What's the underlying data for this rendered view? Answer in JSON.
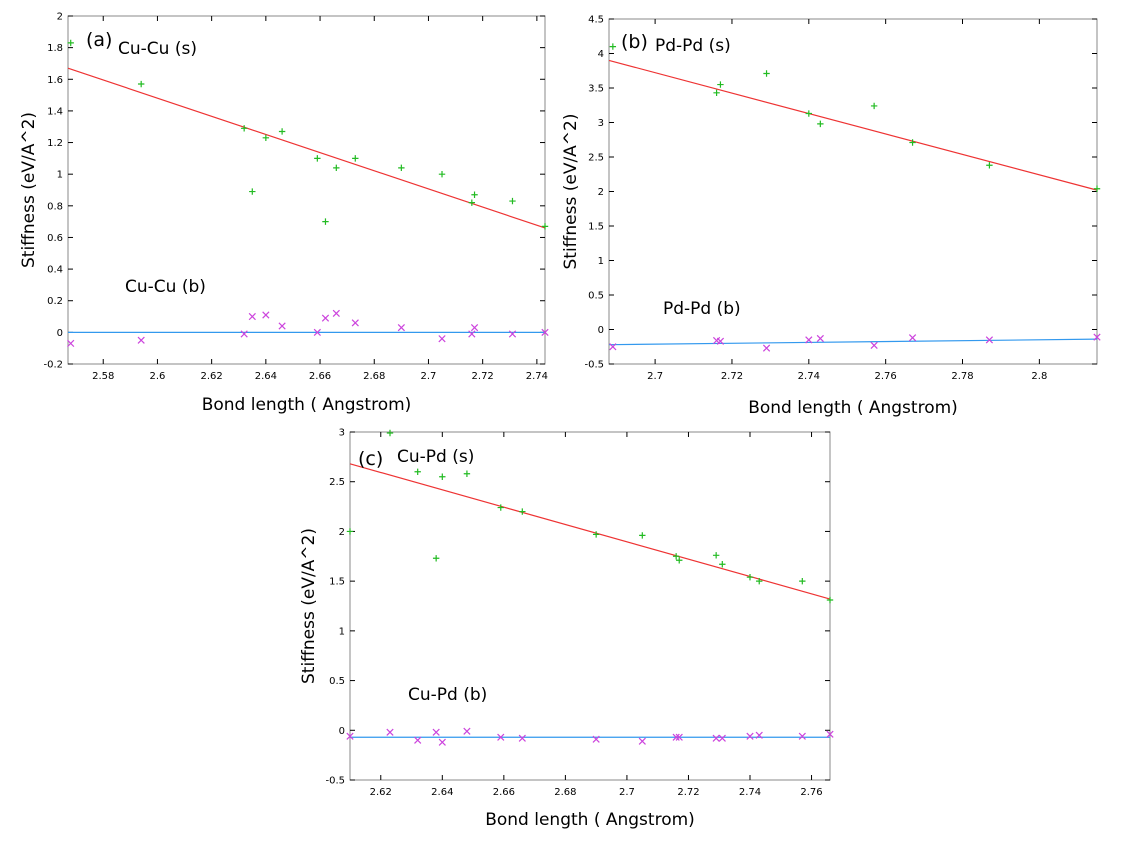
{
  "colors": {
    "stretch_points": "#22bb22",
    "bend_points": "#cc44dd",
    "stretch_fit": "#ee3333",
    "bend_fit": "#3399ee",
    "frame": "#888888"
  },
  "chart_data": [
    {
      "type": "scatter",
      "panel_label": "(a)",
      "xlabel": "Bond length ( Angstrom)",
      "ylabel": "Stiffness (eV/A^2)",
      "xlim": [
        2.567,
        2.743
      ],
      "ylim": [
        -0.2,
        2.0
      ],
      "xticks": [
        "2.58",
        "2.6",
        "2.62",
        "2.64",
        "2.66",
        "2.68",
        "2.7",
        "2.72",
        "2.74"
      ],
      "yticks": [
        "-0.2",
        "0",
        "0.2",
        "0.4",
        "0.6",
        "0.8",
        "1",
        "1.2",
        "1.4",
        "1.6",
        "1.8",
        "2"
      ],
      "series": [
        {
          "name": "Cu-Cu (s)",
          "marker": "plus",
          "color_key": "stretch_points",
          "x": [
            2.568,
            2.594,
            2.632,
            2.635,
            2.64,
            2.646,
            2.659,
            2.662,
            2.666,
            2.673,
            2.69,
            2.705,
            2.716,
            2.717,
            2.731,
            2.743
          ],
          "y": [
            1.83,
            1.57,
            1.29,
            0.89,
            1.23,
            1.27,
            1.1,
            0.7,
            1.04,
            1.1,
            1.04,
            1.0,
            0.82,
            0.87,
            0.83,
            0.67
          ]
        },
        {
          "name": "Cu-Cu (b)",
          "marker": "cross",
          "color_key": "bend_points",
          "x": [
            2.568,
            2.594,
            2.632,
            2.635,
            2.64,
            2.646,
            2.659,
            2.662,
            2.666,
            2.673,
            2.69,
            2.705,
            2.716,
            2.717,
            2.731,
            2.743
          ],
          "y": [
            -0.07,
            -0.05,
            -0.01,
            0.1,
            0.11,
            0.04,
            0.0,
            0.09,
            0.12,
            0.06,
            0.03,
            -0.04,
            -0.01,
            0.03,
            -0.01,
            0.0
          ]
        }
      ],
      "fits": [
        {
          "color_key": "stretch_fit",
          "x": [
            2.567,
            2.743
          ],
          "y": [
            1.67,
            0.66
          ]
        },
        {
          "color_key": "bend_fit",
          "x": [
            2.567,
            2.743
          ],
          "y": [
            0.0,
            0.0
          ]
        }
      ]
    },
    {
      "type": "scatter",
      "panel_label": "(b)",
      "xlabel": "Bond length ( Angstrom)",
      "ylabel": "Stiffness (eV/A^2)",
      "xlim": [
        2.688,
        2.815
      ],
      "ylim": [
        -0.5,
        4.5
      ],
      "xticks": [
        "2.7",
        "2.72",
        "2.74",
        "2.76",
        "2.78",
        "2.8"
      ],
      "yticks": [
        "-0.5",
        "0",
        "0.5",
        "1",
        "1.5",
        "2",
        "2.5",
        "3",
        "3.5",
        "4",
        "4.5"
      ],
      "series": [
        {
          "name": "Pd-Pd (s)",
          "marker": "plus",
          "color_key": "stretch_points",
          "x": [
            2.689,
            2.716,
            2.717,
            2.729,
            2.74,
            2.743,
            2.757,
            2.767,
            2.787,
            2.815
          ],
          "y": [
            4.1,
            3.43,
            3.55,
            3.71,
            3.13,
            2.98,
            3.24,
            2.71,
            2.38,
            2.04
          ]
        },
        {
          "name": "Pd-Pd (b)",
          "marker": "cross",
          "color_key": "bend_points",
          "x": [
            2.689,
            2.716,
            2.717,
            2.729,
            2.74,
            2.743,
            2.757,
            2.767,
            2.787,
            2.815
          ],
          "y": [
            -0.25,
            -0.16,
            -0.17,
            -0.27,
            -0.15,
            -0.13,
            -0.23,
            -0.12,
            -0.15,
            -0.11
          ]
        }
      ],
      "fits": [
        {
          "color_key": "stretch_fit",
          "x": [
            2.688,
            2.815
          ],
          "y": [
            3.9,
            2.02
          ]
        },
        {
          "color_key": "bend_fit",
          "x": [
            2.688,
            2.815
          ],
          "y": [
            -0.22,
            -0.14
          ]
        }
      ]
    },
    {
      "type": "scatter",
      "panel_label": "(c)",
      "xlabel": "Bond length ( Angstrom)",
      "ylabel": "Stiffness (eV/A^2)",
      "xlim": [
        2.61,
        2.766
      ],
      "ylim": [
        -0.5,
        3.0
      ],
      "xticks": [
        "2.62",
        "2.64",
        "2.66",
        "2.68",
        "2.7",
        "2.72",
        "2.74",
        "2.76"
      ],
      "yticks": [
        "-0.5",
        "0",
        "0.5",
        "1",
        "1.5",
        "2",
        "2.5",
        "3"
      ],
      "series": [
        {
          "name": "Cu-Pd (s)",
          "marker": "plus",
          "color_key": "stretch_points",
          "x": [
            2.61,
            2.623,
            2.632,
            2.638,
            2.64,
            2.648,
            2.659,
            2.666,
            2.69,
            2.705,
            2.716,
            2.717,
            2.729,
            2.731,
            2.74,
            2.743,
            2.757,
            2.766
          ],
          "y": [
            2.0,
            2.99,
            2.6,
            1.73,
            2.55,
            2.58,
            2.24,
            2.2,
            1.97,
            1.96,
            1.75,
            1.71,
            1.76,
            1.67,
            1.54,
            1.5,
            1.5,
            1.31
          ]
        },
        {
          "name": "Cu-Pd (b)",
          "marker": "cross",
          "color_key": "bend_points",
          "x": [
            2.61,
            2.623,
            2.632,
            2.638,
            2.64,
            2.648,
            2.659,
            2.666,
            2.69,
            2.705,
            2.716,
            2.717,
            2.729,
            2.731,
            2.74,
            2.743,
            2.757,
            2.766
          ],
          "y": [
            -0.06,
            -0.02,
            -0.1,
            -0.02,
            -0.12,
            -0.01,
            -0.07,
            -0.08,
            -0.09,
            -0.11,
            -0.07,
            -0.07,
            -0.08,
            -0.08,
            -0.06,
            -0.05,
            -0.06,
            -0.04
          ]
        }
      ],
      "fits": [
        {
          "color_key": "stretch_fit",
          "x": [
            2.61,
            2.766
          ],
          "y": [
            2.68,
            1.32
          ]
        },
        {
          "color_key": "bend_fit",
          "x": [
            2.61,
            2.766
          ],
          "y": [
            -0.07,
            -0.07
          ]
        }
      ]
    }
  ]
}
